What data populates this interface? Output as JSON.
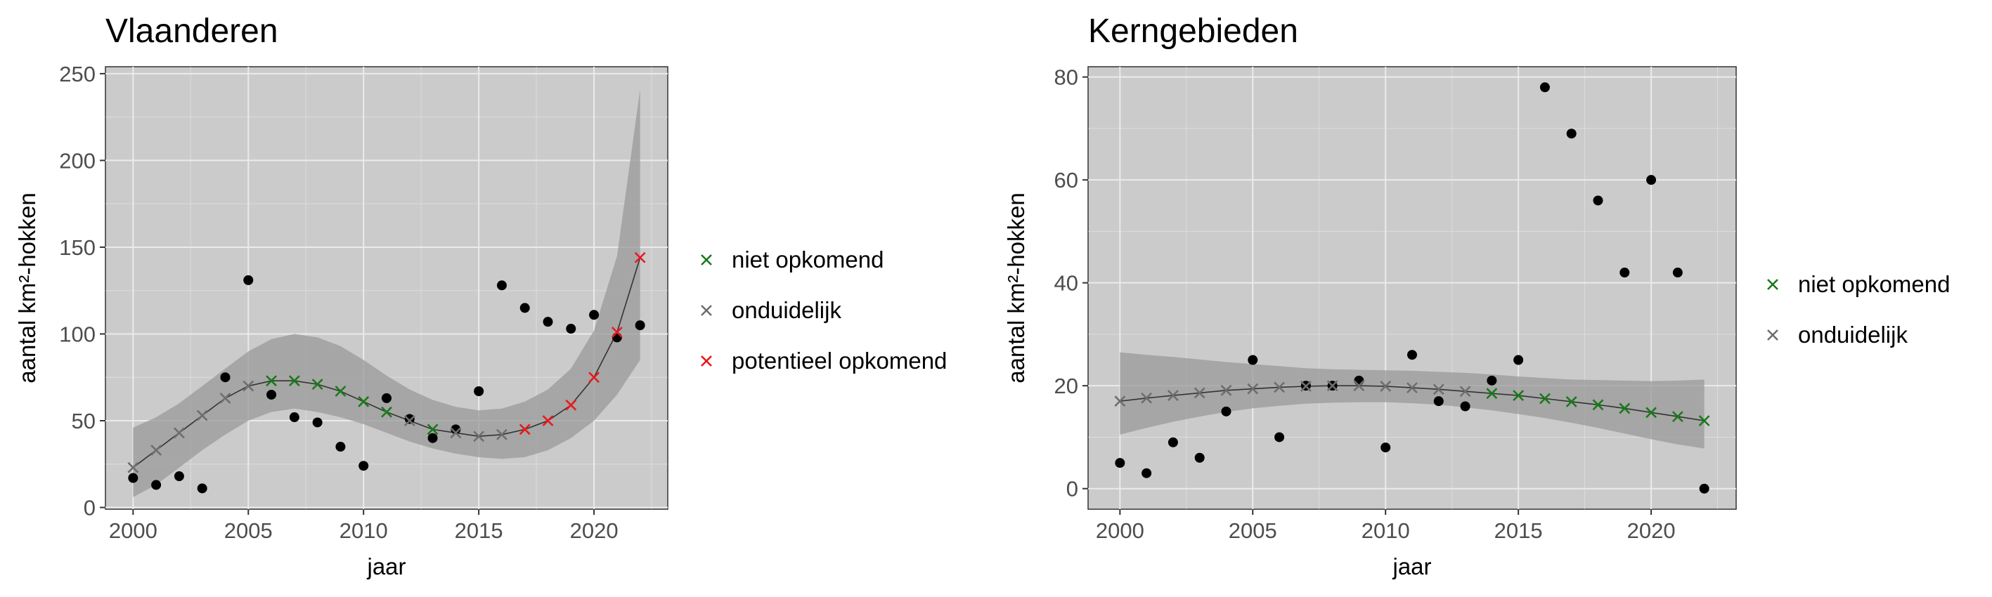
{
  "colors": {
    "background": "#ffffff",
    "panel": "#cbcbcb",
    "grid": "#ebebeb",
    "ribbon": "#9a9a9a",
    "trend_line": "#333333",
    "points": "#000000",
    "niet opkomend": "#1a7a1a",
    "onduidelijk": "#6e6e6e",
    "potentieel opkomend": "#e8191d"
  },
  "chart_data": [
    {
      "type": "scatter",
      "title": "Vlaanderen",
      "xlabel": "jaar",
      "ylabel": "aantal km²-hokken",
      "xlim": [
        1998.8,
        2023.2
      ],
      "ylim": [
        -1,
        254
      ],
      "x_ticks": [
        2000,
        2005,
        2010,
        2015,
        2020
      ],
      "y_ticks": [
        0,
        50,
        100,
        150,
        200,
        250
      ],
      "grid": true,
      "legend_position": "right",
      "legend": [
        "niet opkomend",
        "onduidelijk",
        "potentieel opkomend"
      ],
      "observed": {
        "x": [
          2000,
          2001,
          2002,
          2003,
          2004,
          2005,
          2006,
          2007,
          2008,
          2009,
          2010,
          2011,
          2012,
          2013,
          2014,
          2015,
          2016,
          2017,
          2018,
          2019,
          2020,
          2021,
          2022
        ],
        "y": [
          17,
          13,
          18,
          11,
          75,
          131,
          65,
          52,
          49,
          35,
          24,
          63,
          51,
          40,
          45,
          67,
          128,
          115,
          107,
          103,
          111,
          98,
          105
        ]
      },
      "trend": {
        "x": [
          2000,
          2001,
          2002,
          2003,
          2004,
          2005,
          2006,
          2007,
          2008,
          2009,
          2010,
          2011,
          2012,
          2013,
          2014,
          2015,
          2016,
          2017,
          2018,
          2019,
          2020,
          2021,
          2022
        ],
        "y": [
          23,
          33,
          43,
          53,
          63,
          70,
          73,
          73,
          71,
          67,
          61,
          55,
          50,
          45,
          43,
          41,
          42,
          45,
          50,
          59,
          75,
          101,
          144
        ],
        "lower": [
          6,
          13,
          23,
          33,
          42,
          50,
          55,
          57,
          55,
          52,
          48,
          43,
          38,
          34,
          31,
          29,
          28,
          29,
          33,
          40,
          50,
          65,
          85
        ],
        "upper": [
          46,
          52,
          60,
          70,
          80,
          90,
          97,
          100,
          98,
          93,
          85,
          76,
          68,
          62,
          58,
          56,
          57,
          61,
          68,
          80,
          102,
          145,
          241
        ],
        "classification": [
          "onduidelijk",
          "onduidelijk",
          "onduidelijk",
          "onduidelijk",
          "onduidelijk",
          "onduidelijk",
          "niet opkomend",
          "niet opkomend",
          "niet opkomend",
          "niet opkomend",
          "niet opkomend",
          "niet opkomend",
          "onduidelijk",
          "niet opkomend",
          "onduidelijk",
          "onduidelijk",
          "onduidelijk",
          "potentieel opkomend",
          "potentieel opkomend",
          "potentieel opkomend",
          "potentieel opkomend",
          "potentieel opkomend",
          "potentieel opkomend"
        ]
      }
    },
    {
      "type": "scatter",
      "title": "Kerngebieden",
      "xlabel": "jaar",
      "ylabel": "aantal km²-hokken",
      "xlim": [
        1998.8,
        2023.2
      ],
      "ylim": [
        -4,
        82
      ],
      "x_ticks": [
        2000,
        2005,
        2010,
        2015,
        2020
      ],
      "y_ticks": [
        0,
        20,
        40,
        60,
        80
      ],
      "grid": true,
      "legend_position": "right",
      "legend": [
        "niet opkomend",
        "onduidelijk"
      ],
      "observed": {
        "x": [
          2000,
          2001,
          2002,
          2003,
          2004,
          2005,
          2006,
          2007,
          2008,
          2009,
          2010,
          2011,
          2012,
          2013,
          2014,
          2015,
          2016,
          2017,
          2018,
          2019,
          2020,
          2021,
          2022
        ],
        "y": [
          5,
          3,
          9,
          6,
          15,
          25,
          10,
          20,
          20,
          21,
          8,
          26,
          17,
          16,
          21,
          25,
          78,
          69,
          56,
          42,
          60,
          42,
          0
        ]
      },
      "trend": {
        "x": [
          2000,
          2001,
          2002,
          2003,
          2004,
          2005,
          2006,
          2007,
          2008,
          2009,
          2010,
          2011,
          2012,
          2013,
          2014,
          2015,
          2016,
          2017,
          2018,
          2019,
          2020,
          2021,
          2022
        ],
        "y": [
          17,
          17.6,
          18.1,
          18.6,
          19.1,
          19.4,
          19.7,
          19.9,
          20,
          20,
          19.9,
          19.6,
          19.3,
          18.9,
          18.5,
          18.1,
          17.5,
          16.9,
          16.3,
          15.6,
          14.8,
          14,
          13.2
        ],
        "lower": [
          10.5,
          11.8,
          13,
          14,
          14.9,
          15.6,
          16.1,
          16.5,
          16.7,
          16.8,
          16.8,
          16.6,
          16.3,
          15.8,
          15.2,
          14.5,
          13.7,
          12.8,
          11.8,
          10.7,
          9.6,
          8.6,
          7.8
        ],
        "upper": [
          26.5,
          26,
          25.6,
          25.1,
          24.6,
          24.2,
          23.8,
          23.4,
          23.2,
          23.1,
          23,
          22.9,
          22.7,
          22.5,
          22.2,
          21.8,
          21.5,
          21.2,
          21.1,
          21,
          20.9,
          21,
          21.2
        ],
        "classification": [
          "onduidelijk",
          "onduidelijk",
          "onduidelijk",
          "onduidelijk",
          "onduidelijk",
          "onduidelijk",
          "onduidelijk",
          "onduidelijk",
          "onduidelijk",
          "onduidelijk",
          "onduidelijk",
          "onduidelijk",
          "onduidelijk",
          "onduidelijk",
          "niet opkomend",
          "niet opkomend",
          "niet opkomend",
          "niet opkomend",
          "niet opkomend",
          "niet opkomend",
          "niet opkomend",
          "niet opkomend",
          "niet opkomend"
        ]
      }
    }
  ]
}
